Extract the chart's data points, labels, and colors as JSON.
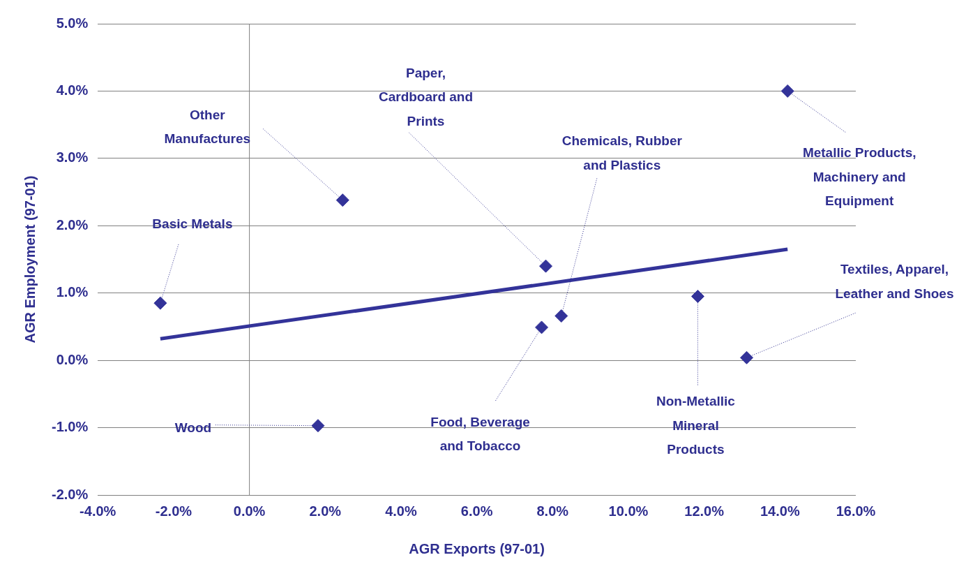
{
  "chart_data": {
    "type": "scatter",
    "xlabel": "AGR Exports (97-01)",
    "ylabel": "AGR Employment (97-01)",
    "x": [
      -2.35,
      2.46,
      1.81,
      7.82,
      7.71,
      8.23,
      11.83,
      13.12,
      14.2
    ],
    "series": [
      {
        "type": "scatter",
        "color": "#333399",
        "values": [
          0.85,
          2.38,
          -0.97,
          1.4,
          0.49,
          0.66,
          0.95,
          0.04,
          4.0
        ],
        "marker": "diamond"
      },
      {
        "type": "line",
        "color": "#333399",
        "x": [
          -2.35,
          14.2
        ],
        "values": [
          0.32,
          1.65
        ],
        "marker": "none"
      }
    ],
    "annotations": [
      {
        "text": "Basic Metals",
        "x": -2.35,
        "y": 0.85
      },
      {
        "text": "Other Manufactures",
        "x": 2.46,
        "y": 2.38
      },
      {
        "text": "Wood",
        "x": 1.81,
        "y": -0.97
      },
      {
        "text": "Paper, Cardboard and Prints",
        "x": 7.82,
        "y": 1.4
      },
      {
        "text": "Food, Beverage and Tobacco",
        "x": 7.71,
        "y": 0.49
      },
      {
        "text": "Chemicals, Rubber and Plastics",
        "x": 8.23,
        "y": 0.66
      },
      {
        "text": "Non-Metallic Mineral Products",
        "x": 11.83,
        "y": 0.95
      },
      {
        "text": "Textiles, Apparel, Leather and Shoes",
        "x": 13.12,
        "y": 0.04
      },
      {
        "text": "Metallic Products, Machinery and Equipment",
        "x": 14.2,
        "y": 4.0
      }
    ],
    "xlim": [
      -4,
      16
    ],
    "xticks": [
      {
        "value": -4,
        "label": "-4.0%"
      },
      {
        "value": -2,
        "label": "-2.0%"
      },
      {
        "value": 0,
        "label": "0.0%"
      },
      {
        "value": 2,
        "label": "2.0%"
      },
      {
        "value": 4,
        "label": "4.0%"
      },
      {
        "value": 6,
        "label": "6.0%"
      },
      {
        "value": 8,
        "label": "8.0%"
      },
      {
        "value": 10,
        "label": "10.0%"
      },
      {
        "value": 12,
        "label": "12.0%"
      },
      {
        "value": 14,
        "label": "14.0%"
      },
      {
        "value": 16,
        "label": "16.0%"
      }
    ],
    "ylim": [
      -2,
      5
    ],
    "yticks": [
      {
        "value": -2,
        "label": "-2.0%"
      },
      {
        "value": -1,
        "label": "-1.0%"
      },
      {
        "value": 0,
        "label": "0.0%"
      },
      {
        "value": 1,
        "label": "1.0%"
      },
      {
        "value": 2,
        "label": "2.0%"
      },
      {
        "value": 3,
        "label": "3.0%"
      },
      {
        "value": 4,
        "label": "4.0%"
      },
      {
        "value": 5,
        "label": "5.0%"
      }
    ],
    "ref_lines": [
      {
        "axis": "x",
        "value": 0,
        "color": "#808080"
      }
    ],
    "grid": "y",
    "legend": false
  }
}
